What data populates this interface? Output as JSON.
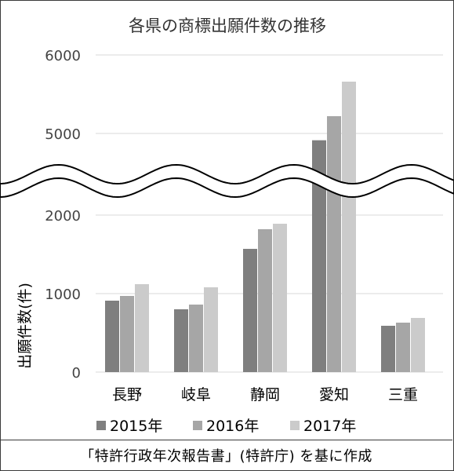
{
  "source_note": "「特許行政年次報告書」(特許庁) を基に作成",
  "chart_data": {
    "type": "bar",
    "title": "各県の商標出願件数の推移",
    "ylabel": "出願件数(件)",
    "xlabel": "",
    "categories": [
      "長野",
      "岐阜",
      "静岡",
      "愛知",
      "三重"
    ],
    "series": [
      {
        "name": "2015年",
        "color": "#7f7f7f",
        "values": [
          910,
          800,
          1570,
          4750,
          590
        ]
      },
      {
        "name": "2016年",
        "color": "#a6a6a6",
        "values": [
          970,
          860,
          1820,
          5220,
          630
        ]
      },
      {
        "name": "2017年",
        "color": "#cbcbcb",
        "values": [
          1120,
          1080,
          1890,
          5660,
          690
        ]
      }
    ],
    "y_axis_broken": true,
    "y_lower_range": [
      0,
      2000
    ],
    "y_upper_range": [
      5000,
      6000
    ],
    "y_ticks": [
      "0",
      "1000",
      "2000",
      "5000",
      "6000"
    ],
    "grid": true,
    "legend_position": "bottom"
  }
}
